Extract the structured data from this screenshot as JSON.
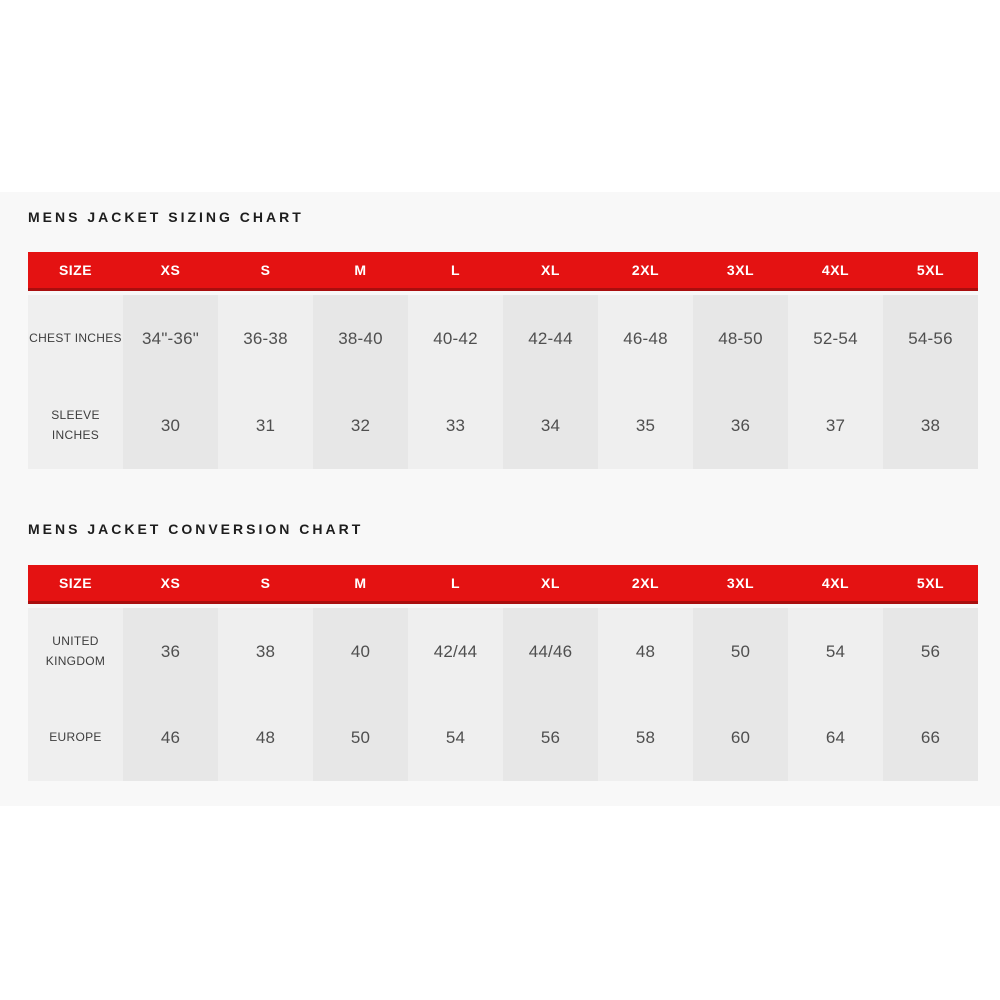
{
  "colors": {
    "accent_red": "#e41212",
    "accent_red_dark": "#a90e0e",
    "band_background": "#f8f8f8",
    "stripe_light": "#efefef",
    "stripe_dark": "#e7e7e7"
  },
  "chart_data": [
    {
      "type": "table",
      "title": "MENS JACKET SIZING CHART",
      "columns": [
        "SIZE",
        "XS",
        "S",
        "M",
        "L",
        "XL",
        "2XL",
        "3XL",
        "4XL",
        "5XL"
      ],
      "rows": [
        {
          "label": "CHEST INCHES",
          "values": [
            "34\"-36\"",
            "36-38",
            "38-40",
            "40-42",
            "42-44",
            "46-48",
            "48-50",
            "52-54",
            "54-56"
          ]
        },
        {
          "label": "SLEEVE\nINCHES",
          "values": [
            "30",
            "31",
            "32",
            "33",
            "34",
            "35",
            "36",
            "37",
            "38"
          ]
        }
      ]
    },
    {
      "type": "table",
      "title": "MENS JACKET CONVERSION CHART",
      "columns": [
        "SIZE",
        "XS",
        "S",
        "M",
        "L",
        "XL",
        "2XL",
        "3XL",
        "4XL",
        "5XL"
      ],
      "rows": [
        {
          "label": "UNITED\nKINGDOM",
          "values": [
            "36",
            "38",
            "40",
            "42/44",
            "44/46",
            "48",
            "50",
            "54",
            "56"
          ]
        },
        {
          "label": "EUROPE",
          "values": [
            "46",
            "48",
            "50",
            "54",
            "56",
            "58",
            "60",
            "64",
            "66"
          ]
        }
      ]
    }
  ]
}
